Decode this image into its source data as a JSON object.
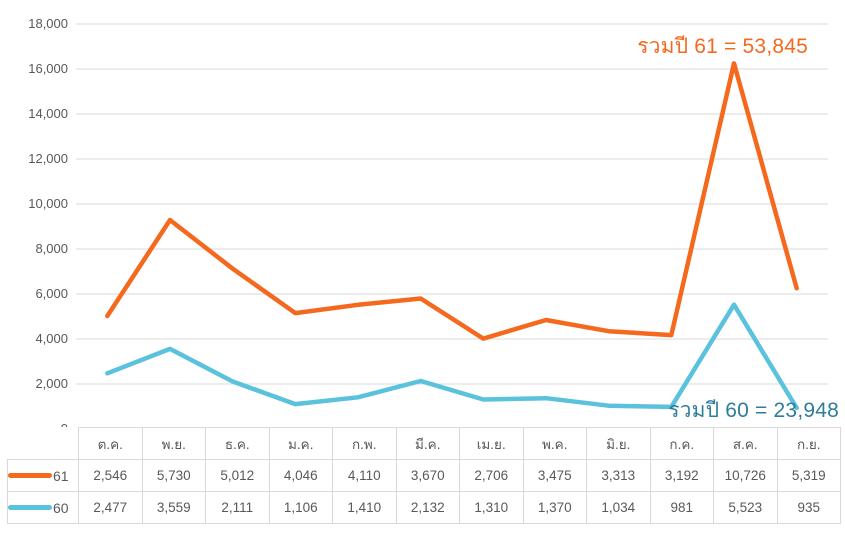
{
  "chart_data": {
    "type": "line",
    "stacked": true,
    "title": "",
    "xlabel": "",
    "ylabel": "",
    "categories": [
      "ต.ค.",
      "พ.ย.",
      "ธ.ค.",
      "ม.ค.",
      "ก.พ.",
      "มี.ค.",
      "เม.ย.",
      "พ.ค.",
      "มิ.ย.",
      "ก.ค.",
      "ส.ค.",
      "ก.ย."
    ],
    "series": [
      {
        "name": "61",
        "color": "#F4691D",
        "values": [
          2546,
          5730,
          5012,
          4046,
          4110,
          3670,
          2706,
          3475,
          3313,
          3192,
          10726,
          5319
        ],
        "total": 53845
      },
      {
        "name": "60",
        "color": "#5BC2DE",
        "values": [
          2477,
          3559,
          2111,
          1106,
          1410,
          2132,
          1310,
          1370,
          1034,
          981,
          5523,
          935
        ],
        "total": 23948
      }
    ],
    "ylim": [
      0,
      18000
    ],
    "ytick_step": 2000,
    "yticks": [
      "0",
      "2,000",
      "4,000",
      "6,000",
      "8,000",
      "10,000",
      "12,000",
      "14,000",
      "16,000",
      "18,000"
    ],
    "grid": true,
    "gridline_color": "#dadada",
    "legend_position": "table-left-column",
    "annotations": [
      {
        "text": "รวมปี 61 = 53,845",
        "color": "#F4691D"
      },
      {
        "text": "รวมปี 60 = 23,948",
        "color": "#2E7D9B"
      }
    ]
  }
}
